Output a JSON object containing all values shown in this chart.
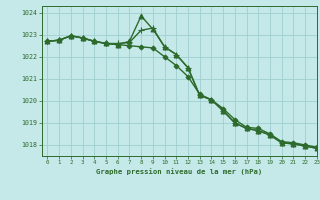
{
  "title": "Graphe pression niveau de la mer (hPa)",
  "background_color": "#c5e8e8",
  "grid_color": "#9fcfcf",
  "line_color": "#2d6b2d",
  "xlim": [
    -0.5,
    23
  ],
  "ylim": [
    1017.5,
    1024.3
  ],
  "yticks": [
    1018,
    1019,
    1020,
    1021,
    1022,
    1023,
    1024
  ],
  "xticks": [
    0,
    1,
    2,
    3,
    4,
    5,
    6,
    7,
    8,
    9,
    10,
    11,
    12,
    13,
    14,
    15,
    16,
    17,
    18,
    19,
    20,
    21,
    22,
    23
  ],
  "series": [
    {
      "x": [
        0,
        1,
        2,
        3,
        4,
        5,
        6,
        7,
        8,
        9,
        10,
        11,
        12,
        13,
        14,
        15,
        16,
        17,
        18,
        19,
        20,
        21,
        22,
        23
      ],
      "y": [
        1022.7,
        1022.75,
        1022.95,
        1022.85,
        1022.7,
        1022.6,
        1022.55,
        1022.5,
        1022.45,
        1022.4,
        1022.0,
        1021.6,
        1021.1,
        1020.3,
        1020.05,
        1019.65,
        1019.15,
        1018.8,
        1018.75,
        1018.5,
        1018.15,
        1018.1,
        1018.0,
        1017.9
      ],
      "marker": "D",
      "markersize": 2.5,
      "linewidth": 1.0,
      "markevery": 1
    },
    {
      "x": [
        0,
        1,
        2,
        3,
        4,
        5,
        6,
        7,
        8,
        9,
        10,
        11,
        12,
        13,
        14,
        15,
        16,
        17,
        18,
        19,
        20,
        21,
        22,
        23
      ],
      "y": [
        1022.7,
        1022.75,
        1022.95,
        1022.85,
        1022.7,
        1022.6,
        1022.55,
        1022.7,
        1023.85,
        1023.25,
        1022.45,
        1022.1,
        1021.5,
        1020.25,
        1020.05,
        1019.55,
        1019.0,
        1018.75,
        1018.65,
        1018.45,
        1018.1,
        1018.05,
        1017.95,
        1017.85
      ],
      "marker": "^",
      "markersize": 3.5,
      "linewidth": 1.0,
      "markevery": 1
    },
    {
      "x": [
        0,
        1,
        2,
        3,
        4,
        5,
        6,
        7,
        8,
        9,
        10,
        11,
        12,
        13,
        14,
        15,
        16,
        17,
        18,
        19,
        20,
        21,
        22,
        23
      ],
      "y": [
        1022.7,
        1022.75,
        1022.95,
        1022.85,
        1022.7,
        1022.6,
        1022.6,
        1022.65,
        1023.2,
        1023.3,
        1022.45,
        1022.1,
        1021.5,
        1020.25,
        1020.05,
        1019.55,
        1019.0,
        1018.75,
        1018.65,
        1018.45,
        1018.1,
        1018.05,
        1017.95,
        1017.85
      ],
      "marker": "+",
      "markersize": 4,
      "linewidth": 1.0,
      "markevery": 1
    }
  ]
}
